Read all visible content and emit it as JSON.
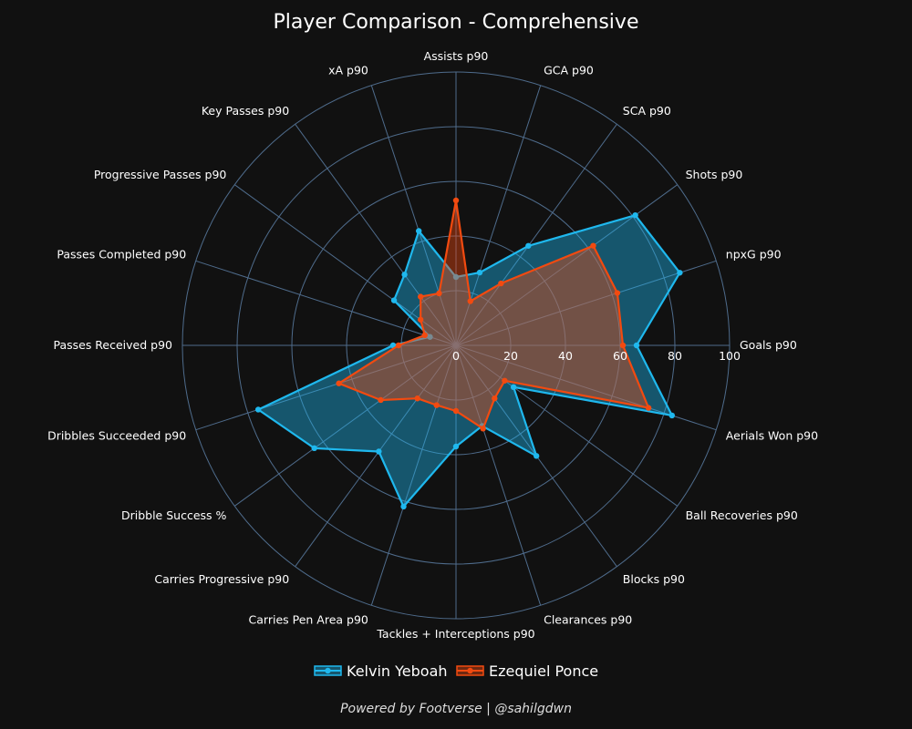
{
  "chart_data": {
    "type": "radar",
    "title": "Player Comparison - Comprehensive",
    "axes": [
      "Goals p90",
      "npxG p90",
      "Shots p90",
      "SCA p90",
      "GCA p90",
      "Assists p90",
      "xA p90",
      "Key Passes p90",
      "Progressive Passes p90",
      "Passes Completed p90",
      "Passes Received p90",
      "Dribbles Succeeded p90",
      "Dribble Success %",
      "Carries Progressive p90",
      "Carries Pen Area p90",
      "Tackles + Interceptions p90",
      "Clearances p90",
      "Blocks p90",
      "Ball Recoveries p90",
      "Aerials Won p90"
    ],
    "rlim": [
      0,
      100
    ],
    "rticks": [
      "0",
      "20",
      "40",
      "60",
      "80",
      "100"
    ],
    "rtick_values": [
      0,
      20,
      40,
      60,
      80,
      100
    ],
    "series": [
      {
        "name": "Kelvin Yeboah",
        "color": "#1fb8ee",
        "values": [
          66,
          86,
          81,
          45,
          28,
          25,
          44,
          32,
          28,
          10,
          23,
          76,
          64,
          48,
          62,
          37,
          31,
          50,
          26,
          83
        ]
      },
      {
        "name": "Ezequiel Ponce",
        "color": "#f24a10",
        "values": [
          61,
          62,
          62,
          28,
          17,
          53,
          20,
          22,
          16,
          12,
          21,
          45,
          34,
          24,
          23,
          24,
          32,
          24,
          22,
          74
        ]
      }
    ],
    "colors": {
      "background": "#111111",
      "grid": "#4f6c8c"
    },
    "legend": {
      "position": "bottom-center"
    }
  },
  "footer_text": "Powered by Footverse | @sahilgdwn"
}
